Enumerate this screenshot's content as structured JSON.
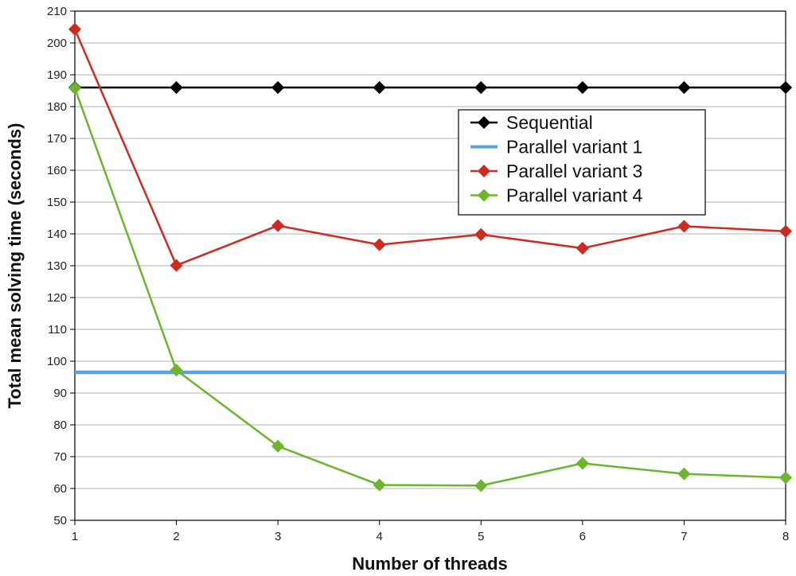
{
  "chart_data": {
    "type": "line",
    "title": "",
    "xlabel": "Number of threads",
    "ylabel": "Total mean solving time (seconds)",
    "x": [
      1,
      2,
      3,
      4,
      5,
      6,
      7,
      8
    ],
    "xlim": [
      1,
      8
    ],
    "ylim": [
      50,
      210
    ],
    "yticks": [
      50,
      60,
      70,
      80,
      90,
      100,
      110,
      120,
      130,
      140,
      150,
      160,
      170,
      180,
      190,
      200,
      210
    ],
    "grid": true,
    "legend_position": "top-right",
    "series": [
      {
        "name": "Sequential",
        "color": "#000000",
        "marker": "diamond",
        "values": [
          186,
          186,
          186,
          186,
          186,
          186,
          186,
          186
        ]
      },
      {
        "name": "Parallel variant 1",
        "color": "#5aa0ea",
        "marker": "none",
        "values": [
          96.5,
          96.5,
          96.5,
          96.5,
          96.5,
          96.5,
          96.5,
          96.5
        ]
      },
      {
        "name": "Parallel variant 3",
        "color": "#cf2a20",
        "marker": "diamond",
        "values": [
          204.3,
          130.1,
          142.6,
          136.6,
          139.8,
          135.5,
          142.4,
          140.8
        ]
      },
      {
        "name": "Parallel variant 4",
        "color": "#6cb62d",
        "marker": "diamond",
        "values": [
          185.8,
          97.2,
          73.3,
          61.1,
          60.9,
          67.9,
          64.6,
          63.4
        ]
      }
    ]
  }
}
